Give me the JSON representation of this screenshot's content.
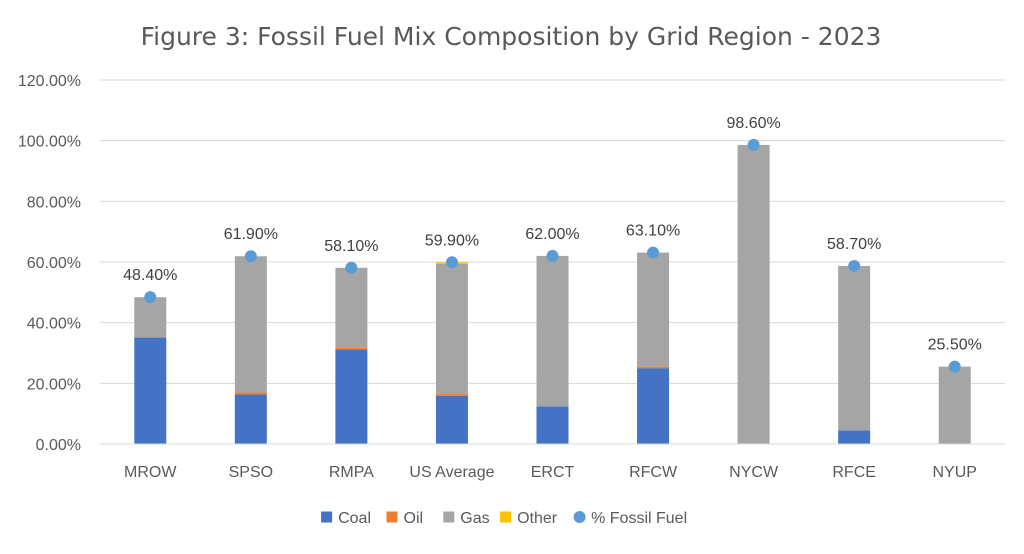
{
  "chart_data": {
    "type": "bar",
    "stacked": true,
    "title": "Figure 3: Fossil Fuel Mix Composition by Grid Region - 2023",
    "xlabel": "",
    "ylabel": "",
    "ylim": [
      0,
      1.2
    ],
    "ytick_step": 0.2,
    "ytick_labels": [
      "0.00%",
      "20.00%",
      "40.00%",
      "60.00%",
      "80.00%",
      "100.00%",
      "120.00%"
    ],
    "grid": true,
    "legend_position": "bottom",
    "categories": [
      "MROW",
      "SPSO",
      "RMPA",
      "US Average",
      "ERCT",
      "RFCW",
      "NYCW",
      "RFCE",
      "NYUP"
    ],
    "series": [
      {
        "name": "Coal",
        "color": "#4472C4",
        "values": [
          0.351,
          0.163,
          0.312,
          0.159,
          0.124,
          0.25,
          0.0,
          0.045,
          0.0
        ]
      },
      {
        "name": "Oil",
        "color": "#ED7D31",
        "values": [
          0.001,
          0.007,
          0.005,
          0.007,
          0.0,
          0.005,
          0.002,
          0.0,
          0.001
        ]
      },
      {
        "name": "Gas",
        "color": "#A5A5A5",
        "values": [
          0.132,
          0.449,
          0.264,
          0.428,
          0.496,
          0.376,
          0.984,
          0.542,
          0.254
        ]
      },
      {
        "name": "Other",
        "color": "#FFC000",
        "values": [
          0.0,
          0.0,
          0.0,
          0.005,
          0.0,
          0.0,
          0.0,
          0.0,
          0.0
        ]
      }
    ],
    "marker_series": {
      "name": "% Fossil Fuel",
      "color": "#5B9BD5",
      "values": [
        0.484,
        0.619,
        0.581,
        0.599,
        0.62,
        0.631,
        0.986,
        0.587,
        0.255
      ],
      "labels": [
        "48.40%",
        "61.90%",
        "58.10%",
        "59.90%",
        "62.00%",
        "63.10%",
        "98.60%",
        "58.70%",
        "25.50%"
      ]
    }
  }
}
